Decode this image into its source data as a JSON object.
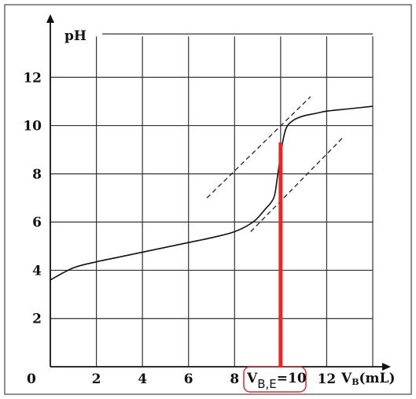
{
  "chart_data": {
    "type": "line",
    "title": "",
    "xlabel": "VB(mL)",
    "xlabel_main": "V",
    "xlabel_sub": "B",
    "xlabel_unit": "(mL)",
    "ylabel": "pH",
    "xlim": [
      0,
      14
    ],
    "ylim": [
      0,
      14
    ],
    "x_ticks": [
      0,
      2,
      4,
      6,
      8,
      12
    ],
    "x_tick_labels": [
      "0",
      "2",
      "4",
      "6",
      "8",
      "12"
    ],
    "y_ticks": [
      2,
      4,
      6,
      8,
      10,
      12
    ],
    "y_tick_labels": [
      "2",
      "4",
      "6",
      "8",
      "10",
      "12"
    ],
    "grid": true,
    "series": [
      {
        "x": [
          0,
          1,
          2,
          3,
          4,
          5,
          6,
          7,
          8,
          8.8,
          9.3,
          9.7,
          9.85,
          10,
          10.15,
          10.3,
          10.6,
          11,
          11.5,
          12,
          13,
          14
        ],
        "y": [
          3.6,
          4.1,
          4.35,
          4.55,
          4.75,
          4.95,
          5.15,
          5.35,
          5.6,
          6.0,
          6.5,
          7.0,
          7.8,
          8.8,
          9.6,
          10.0,
          10.25,
          10.4,
          10.5,
          10.6,
          10.7,
          10.8
        ]
      }
    ],
    "tangents": [
      {
        "x": [
          6.8,
          11.3
        ],
        "y": [
          7.0,
          11.2
        ]
      },
      {
        "x": [
          8.7,
          12.7
        ],
        "y": [
          5.6,
          9.5
        ]
      }
    ],
    "equivalence": {
      "x": 10,
      "y": 9.3,
      "color": "#e8262a"
    },
    "annotation": {
      "main": "V",
      "sub": "B,E",
      "rest": "=10",
      "box_color": "#e8262a"
    }
  }
}
